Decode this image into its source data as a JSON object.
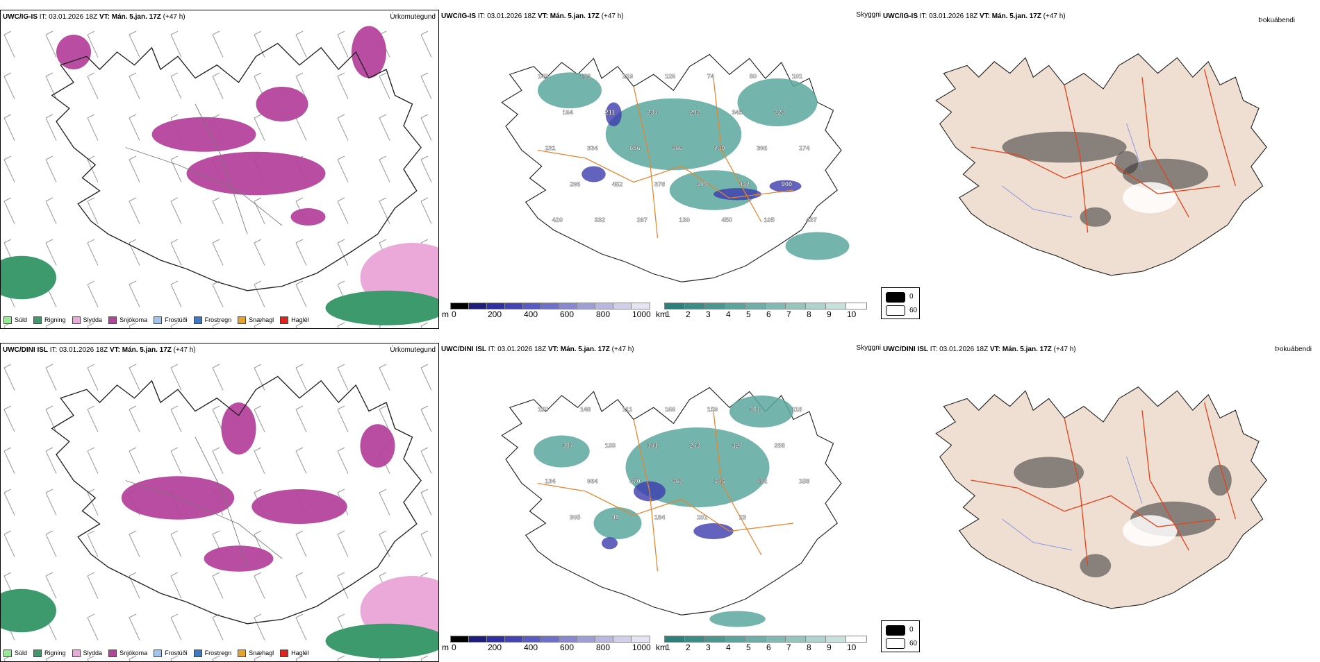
{
  "colors": {
    "mauve": "#b4439c",
    "green": "#3c9a6c",
    "pink": "#eaa9d8",
    "teal": "#5aa89e",
    "navy": "#3c3cae",
    "orange": "#e7852c",
    "tan": "#efdfd2",
    "red": "#e0451c"
  },
  "rows": [
    {
      "panels": [
        {
          "model": "UWC/IG-IS",
          "it": "IT: 03.01.2026 18Z",
          "vt": "VT: Mán. 5.jan. 17Z",
          "lead": "(+47 h)",
          "title": "Úrkomutegund"
        },
        {
          "model": "UWC/IG-IS",
          "it": "IT: 03.01.2026 18Z",
          "vt": "VT: Mán. 5.jan. 17Z",
          "lead": "(+47 h)",
          "title": "Skyggni"
        },
        {
          "model": "UWC/IG-IS",
          "it": "IT: 03.01.2026 18Z",
          "vt": "VT: Mán. 5.jan. 17Z",
          "lead": "(+47 h)",
          "title": "Þokuábendi"
        }
      ],
      "cloud_labels": [
        "149",
        "153",
        "219",
        "126",
        "74",
        "80",
        "101",
        "164",
        "211",
        "234",
        "292",
        "345",
        "224",
        "231",
        "334",
        "656",
        "366",
        "239",
        "396",
        "174",
        "296",
        "452",
        "378",
        "309",
        "432",
        "900",
        "420",
        "332",
        "267",
        "130",
        "450",
        "105",
        "437"
      ]
    },
    {
      "panels": [
        {
          "model": "UWC/DINI ISL",
          "it": "IT: 03.01.2026 18Z",
          "vt": "VT: Mán. 5.jan. 17Z",
          "lead": "(+47 h)",
          "title": "Úrkomutegund"
        },
        {
          "model": "UWC/DINI ISL",
          "it": "IT: 03.01.2026 18Z",
          "vt": "VT: Mán. 5.jan. 17Z",
          "lead": "(+47 h)",
          "title": "Skyggni"
        },
        {
          "model": "UWC/DINI ISL",
          "it": "IT: 03.01.2026 18Z",
          "vt": "VT: Mán. 5.jan. 17Z",
          "lead": "(+47 h)",
          "title": "Þokuábendi"
        }
      ],
      "cloud_labels": [
        "150",
        "148",
        "111",
        "166",
        "159",
        "301",
        "118",
        "307",
        "133",
        "141",
        "243",
        "327",
        "288",
        "134",
        "964",
        "370",
        "361",
        "343",
        "482",
        "158",
        "305",
        "40",
        "184",
        "101",
        "23"
      ]
    }
  ],
  "precip_legend": [
    {
      "label": "Súld",
      "color": "#90ee90"
    },
    {
      "label": "Rigning",
      "color": "#3c9a6c"
    },
    {
      "label": "Slydda",
      "color": "#eaa9d8"
    },
    {
      "label": "Snjókoma",
      "color": "#b4439c"
    },
    {
      "label": "Frostúði",
      "color": "#9ec5ee"
    },
    {
      "label": "Frostregn",
      "color": "#3b78c8"
    },
    {
      "label": "Snæhagl",
      "color": "#e8a22a"
    },
    {
      "label": "Haglél",
      "color": "#e2231a"
    }
  ],
  "cloud_base_scale": {
    "unit": "m",
    "ticks": [
      "0",
      "200",
      "400",
      "600",
      "800",
      "1000"
    ],
    "colors": [
      "#000000",
      "#1f1f7a",
      "#3030a0",
      "#4444b4",
      "#5a5ac0",
      "#7070c8",
      "#8888d0",
      "#9f9fd8",
      "#b7b7e0",
      "#cfcfe9",
      "#e3e3f2"
    ]
  },
  "visibility_scale": {
    "unit": "km",
    "ticks": [
      "1",
      "2",
      "3",
      "4",
      "5",
      "6",
      "7",
      "8",
      "9",
      "10"
    ],
    "colors": [
      "#2f7f7a",
      "#3d8b85",
      "#4c968f",
      "#5ca39b",
      "#6eaea6",
      "#82b9b2",
      "#97c5be",
      "#aed2cc",
      "#c6e0dc",
      "#ffffff"
    ]
  },
  "fog_legend": {
    "dark": "0",
    "light": "60"
  }
}
